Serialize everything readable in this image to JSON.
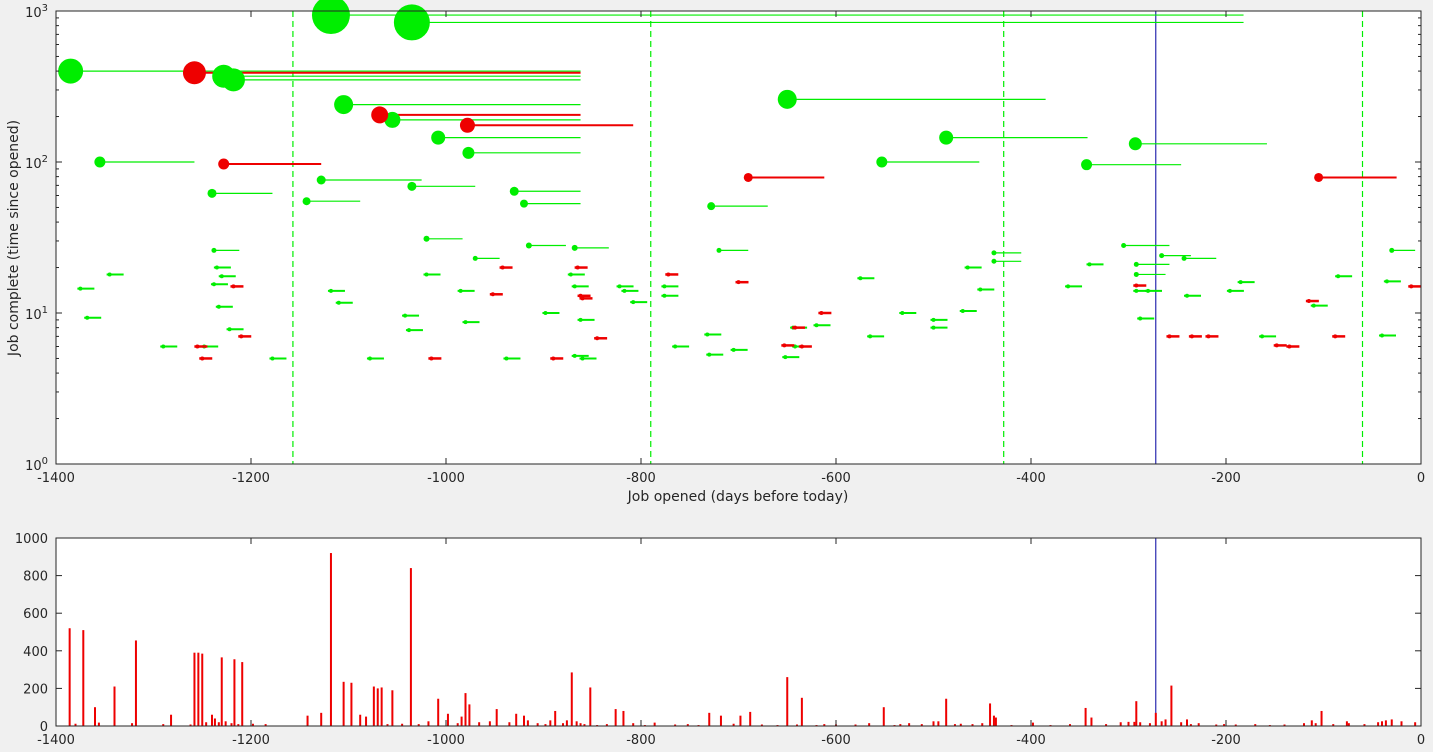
{
  "figure": {
    "background": "#f0f0f0"
  },
  "colors": {
    "complete": "#00ee00",
    "open": "#ee0000",
    "today_line": "#0000a0",
    "bars": "#ee0000",
    "axes": "#262626"
  },
  "chart_data": [
    {
      "type": "scatter",
      "title": "",
      "xlabel": "Job opened (days before today)",
      "ylabel": "Job complete (time since opened)",
      "xlim": [
        -1400,
        0
      ],
      "ylim": [
        1,
        1000
      ],
      "yscale": "log",
      "grid": false,
      "legend": "none",
      "x_ticks": [
        "-1400",
        "-1200",
        "-1000",
        "-800",
        "-600",
        "-400",
        "-200",
        "0"
      ],
      "y_ticks": [
        {
          "base": "10",
          "exp": "0"
        },
        {
          "base": "10",
          "exp": "1"
        },
        {
          "base": "10",
          "exp": "2"
        },
        {
          "base": "10",
          "exp": "3"
        }
      ],
      "vertical_lines_dashed": [
        -1157,
        -790,
        -428,
        -60
      ],
      "vertical_line_solid": -272,
      "series": [
        {
          "color": "green",
          "points": [
            {
              "x": -1385,
              "y": 400,
              "size": 25,
              "x_end": -862
            },
            {
              "x": -1118,
              "y": 940,
              "size": 38,
              "x_end": -182
            },
            {
              "x": -1035,
              "y": 840,
              "size": 36,
              "x_end": -182
            },
            {
              "x": -1228,
              "y": 370,
              "size": 23,
              "x_end": -862
            },
            {
              "x": -1218,
              "y": 350,
              "size": 23,
              "x_end": -862
            },
            {
              "x": -1105,
              "y": 240,
              "size": 19,
              "x_end": -862
            },
            {
              "x": -1055,
              "y": 190,
              "size": 16,
              "x_end": -862
            },
            {
              "x": -1008,
              "y": 145,
              "size": 14,
              "x_end": -862
            },
            {
              "x": -977,
              "y": 115,
              "size": 12,
              "x_end": -862
            },
            {
              "x": -1355,
              "y": 100,
              "size": 11,
              "x_end": -1258
            },
            {
              "x": -1240,
              "y": 62,
              "size": 9,
              "x_end": -1178
            },
            {
              "x": -1128,
              "y": 76,
              "size": 9,
              "x_end": -1025
            },
            {
              "x": -1143,
              "y": 55,
              "size": 8,
              "x_end": -1088
            },
            {
              "x": -1035,
              "y": 69,
              "size": 9,
              "x_end": -970
            },
            {
              "x": -930,
              "y": 64,
              "size": 9,
              "x_end": -862
            },
            {
              "x": -920,
              "y": 53,
              "size": 8,
              "x_end": -862
            },
            {
              "x": -650,
              "y": 260,
              "size": 19,
              "x_end": -385
            },
            {
              "x": -487,
              "y": 145,
              "size": 14,
              "x_end": -342
            },
            {
              "x": -293,
              "y": 132,
              "size": 13,
              "x_end": -158
            },
            {
              "x": -553,
              "y": 100,
              "size": 11,
              "x_end": -453
            },
            {
              "x": -343,
              "y": 96,
              "size": 11,
              "x_end": -246
            },
            {
              "x": -728,
              "y": 51,
              "size": 8,
              "x_end": -670
            },
            {
              "x": -1020,
              "y": 31,
              "size": 6,
              "x_end": -983
            },
            {
              "x": -915,
              "y": 28,
              "size": 6,
              "x_end": -877
            },
            {
              "x": -868,
              "y": 27,
              "size": 6,
              "x_end": -833
            },
            {
              "x": -1238,
              "y": 26,
              "size": 5,
              "x_end": -1212
            },
            {
              "x": -970,
              "y": 23,
              "size": 5,
              "x_end": -945
            },
            {
              "x": -720,
              "y": 26,
              "size": 5,
              "x_end": -690
            },
            {
              "x": -438,
              "y": 25,
              "size": 5,
              "x_end": -410
            },
            {
              "x": -438,
              "y": 22,
              "size": 5,
              "x_end": -410
            },
            {
              "x": -305,
              "y": 28,
              "size": 5,
              "x_end": -258
            },
            {
              "x": -292,
              "y": 21,
              "size": 5,
              "x_end": -258
            },
            {
              "x": -292,
              "y": 18,
              "size": 5,
              "x_end": -262
            },
            {
              "x": -266,
              "y": 24,
              "size": 5,
              "x_end": -236
            },
            {
              "x": -243,
              "y": 23,
              "size": 5,
              "x_end": -210
            },
            {
              "x": -30,
              "y": 26,
              "size": 5,
              "x_end": -6
            }
          ]
        },
        {
          "color": "red",
          "points": [
            {
              "x": -1258,
              "y": 390,
              "size": 23,
              "x_end": -862
            },
            {
              "x": -1068,
              "y": 205,
              "size": 17,
              "x_end": -862
            },
            {
              "x": -978,
              "y": 175,
              "size": 15,
              "x_end": -808
            },
            {
              "x": -1228,
              "y": 97,
              "size": 11,
              "x_end": -1128
            },
            {
              "x": -690,
              "y": 79,
              "size": 9,
              "x_end": -612
            },
            {
              "x": -105,
              "y": 79,
              "size": 9,
              "x_end": -25
            }
          ]
        }
      ],
      "small_marks_green": [
        [
          -1375,
          14.5
        ],
        [
          -1368,
          9.3
        ],
        [
          -1345,
          18
        ],
        [
          -1290,
          6
        ],
        [
          -1248,
          6
        ],
        [
          -1235,
          20
        ],
        [
          -1230,
          17.5
        ],
        [
          -1233,
          11
        ],
        [
          -1238,
          15.5
        ],
        [
          -1222,
          7.8
        ],
        [
          -1178,
          5
        ],
        [
          -1118,
          14
        ],
        [
          -1110,
          11.7
        ],
        [
          -1078,
          5
        ],
        [
          -1042,
          9.6
        ],
        [
          -1038,
          7.7
        ],
        [
          -1020,
          18
        ],
        [
          -985,
          14
        ],
        [
          -980,
          8.7
        ],
        [
          -938,
          5
        ],
        [
          -898,
          10
        ],
        [
          -872,
          18
        ],
        [
          -868,
          15
        ],
        [
          -862,
          9
        ],
        [
          -868,
          5.2
        ],
        [
          -860,
          5
        ],
        [
          -822,
          15
        ],
        [
          -817,
          14
        ],
        [
          -808,
          11.8
        ],
        [
          -776,
          15
        ],
        [
          -776,
          13
        ],
        [
          -765,
          6
        ],
        [
          -732,
          7.2
        ],
        [
          -730,
          5.3
        ],
        [
          -705,
          5.7
        ],
        [
          -642,
          6
        ],
        [
          -644,
          8
        ],
        [
          -620,
          8.3
        ],
        [
          -575,
          17
        ],
        [
          -565,
          7
        ],
        [
          -532,
          10
        ],
        [
          -500,
          9
        ],
        [
          -500,
          8
        ],
        [
          -470,
          10.3
        ],
        [
          -465,
          20
        ],
        [
          -452,
          14.3
        ],
        [
          -362,
          15
        ],
        [
          -340,
          21
        ],
        [
          -292,
          14
        ],
        [
          -288,
          9.2
        ],
        [
          -280,
          14
        ],
        [
          -240,
          13
        ],
        [
          -196,
          14
        ],
        [
          -185,
          16
        ],
        [
          -163,
          7
        ],
        [
          -110,
          11.2
        ],
        [
          -85,
          17.5
        ],
        [
          -40,
          7.1
        ],
        [
          -35,
          16.2
        ],
        [
          -652,
          5.1
        ]
      ],
      "small_marks_red": [
        [
          -1255,
          6
        ],
        [
          -1250,
          5
        ],
        [
          -1218,
          15
        ],
        [
          -1210,
          7
        ],
        [
          -1015,
          5
        ],
        [
          -952,
          13.3
        ],
        [
          -942,
          20
        ],
        [
          -890,
          5
        ],
        [
          -865,
          20
        ],
        [
          -862,
          13
        ],
        [
          -860,
          12.5
        ],
        [
          -845,
          6.8
        ],
        [
          -772,
          18
        ],
        [
          -700,
          16
        ],
        [
          -653,
          6.1
        ],
        [
          -642,
          8
        ],
        [
          -635,
          6
        ],
        [
          -615,
          10
        ],
        [
          -292,
          15.2
        ],
        [
          -258,
          7
        ],
        [
          -235,
          7
        ],
        [
          -218,
          7
        ],
        [
          -148,
          6.1
        ],
        [
          -135,
          6
        ],
        [
          -115,
          12
        ],
        [
          -88,
          7
        ],
        [
          -10,
          15
        ]
      ]
    },
    {
      "type": "bar",
      "title": "",
      "xlabel": "",
      "ylabel": "",
      "xlim": [
        -1400,
        0
      ],
      "ylim": [
        0,
        1000
      ],
      "grid": false,
      "legend": "none",
      "x_ticks": [
        "-1400",
        "-1200",
        "-1000",
        "-800",
        "-600",
        "-400",
        "-200",
        "0"
      ],
      "y_ticks": [
        "0",
        "200",
        "400",
        "600",
        "800",
        "1000"
      ],
      "vertical_line_solid": -272,
      "bars": [
        [
          -1386,
          520
        ],
        [
          -1380,
          12
        ],
        [
          -1372,
          510
        ],
        [
          -1360,
          100
        ],
        [
          -1356,
          18
        ],
        [
          -1340,
          210
        ],
        [
          -1322,
          15
        ],
        [
          -1318,
          455
        ],
        [
          -1290,
          10
        ],
        [
          -1282,
          60
        ],
        [
          -1262,
          8
        ],
        [
          -1258,
          390
        ],
        [
          -1254,
          390
        ],
        [
          -1250,
          385
        ],
        [
          -1246,
          20
        ],
        [
          -1240,
          60
        ],
        [
          -1237,
          40
        ],
        [
          -1233,
          20
        ],
        [
          -1230,
          365
        ],
        [
          -1226,
          25
        ],
        [
          -1220,
          15
        ],
        [
          -1217,
          355
        ],
        [
          -1213,
          10
        ],
        [
          -1209,
          340
        ],
        [
          -1198,
          12
        ],
        [
          -1185,
          10
        ],
        [
          -1142,
          55
        ],
        [
          -1128,
          70
        ],
        [
          -1118,
          920
        ],
        [
          -1105,
          235
        ],
        [
          -1097,
          230
        ],
        [
          -1088,
          60
        ],
        [
          -1082,
          50
        ],
        [
          -1074,
          210
        ],
        [
          -1070,
          200
        ],
        [
          -1066,
          205
        ],
        [
          -1060,
          10
        ],
        [
          -1055,
          190
        ],
        [
          -1045,
          12
        ],
        [
          -1036,
          840
        ],
        [
          -1028,
          10
        ],
        [
          -1018,
          25
        ],
        [
          -1008,
          145
        ],
        [
          -998,
          65
        ],
        [
          -988,
          15
        ],
        [
          -984,
          50
        ],
        [
          -980,
          175
        ],
        [
          -976,
          115
        ],
        [
          -966,
          20
        ],
        [
          -955,
          25
        ],
        [
          -948,
          90
        ],
        [
          -935,
          20
        ],
        [
          -928,
          65
        ],
        [
          -920,
          55
        ],
        [
          -916,
          30
        ],
        [
          -906,
          15
        ],
        [
          -898,
          10
        ],
        [
          -893,
          30
        ],
        [
          -888,
          80
        ],
        [
          -880,
          15
        ],
        [
          -876,
          30
        ],
        [
          -871,
          285
        ],
        [
          -866,
          25
        ],
        [
          -862,
          15
        ],
        [
          -858,
          10
        ],
        [
          -852,
          205
        ],
        [
          -845,
          5
        ],
        [
          -835,
          10
        ],
        [
          -826,
          90
        ],
        [
          -818,
          80
        ],
        [
          -808,
          15
        ],
        [
          -796,
          5
        ],
        [
          -786,
          18
        ],
        [
          -765,
          8
        ],
        [
          -752,
          10
        ],
        [
          -741,
          5
        ],
        [
          -730,
          70
        ],
        [
          -718,
          55
        ],
        [
          -705,
          12
        ],
        [
          -698,
          55
        ],
        [
          -688,
          75
        ],
        [
          -676,
          8
        ],
        [
          -660,
          5
        ],
        [
          -650,
          260
        ],
        [
          -640,
          8
        ],
        [
          -635,
          150
        ],
        [
          -620,
          5
        ],
        [
          -612,
          10
        ],
        [
          -600,
          8
        ],
        [
          -580,
          8
        ],
        [
          -566,
          15
        ],
        [
          -551,
          100
        ],
        [
          -540,
          5
        ],
        [
          -534,
          10
        ],
        [
          -525,
          15
        ],
        [
          -512,
          10
        ],
        [
          -500,
          25
        ],
        [
          -495,
          25
        ],
        [
          -487,
          145
        ],
        [
          -478,
          10
        ],
        [
          -472,
          12
        ],
        [
          -460,
          10
        ],
        [
          -450,
          15
        ],
        [
          -442,
          120
        ],
        [
          -438,
          55
        ],
        [
          -436,
          45
        ],
        [
          -420,
          5
        ],
        [
          -398,
          18
        ],
        [
          -380,
          5
        ],
        [
          -360,
          10
        ],
        [
          -344,
          96
        ],
        [
          -338,
          45
        ],
        [
          -323,
          10
        ],
        [
          -308,
          20
        ],
        [
          -300,
          22
        ],
        [
          -294,
          22
        ],
        [
          -292,
          132
        ],
        [
          -288,
          20
        ],
        [
          -278,
          15
        ],
        [
          -272,
          70
        ],
        [
          -266,
          25
        ],
        [
          -262,
          35
        ],
        [
          -256,
          215
        ],
        [
          -246,
          20
        ],
        [
          -240,
          35
        ],
        [
          -236,
          10
        ],
        [
          -228,
          15
        ],
        [
          -210,
          8
        ],
        [
          -202,
          10
        ],
        [
          -190,
          8
        ],
        [
          -170,
          10
        ],
        [
          -155,
          5
        ],
        [
          -140,
          8
        ],
        [
          -120,
          15
        ],
        [
          -112,
          30
        ],
        [
          -108,
          15
        ],
        [
          -102,
          80
        ],
        [
          -90,
          10
        ],
        [
          -76,
          25
        ],
        [
          -74,
          15
        ],
        [
          -58,
          10
        ],
        [
          -44,
          20
        ],
        [
          -40,
          25
        ],
        [
          -36,
          30
        ],
        [
          -30,
          35
        ],
        [
          -20,
          25
        ],
        [
          -6,
          20
        ]
      ]
    }
  ]
}
